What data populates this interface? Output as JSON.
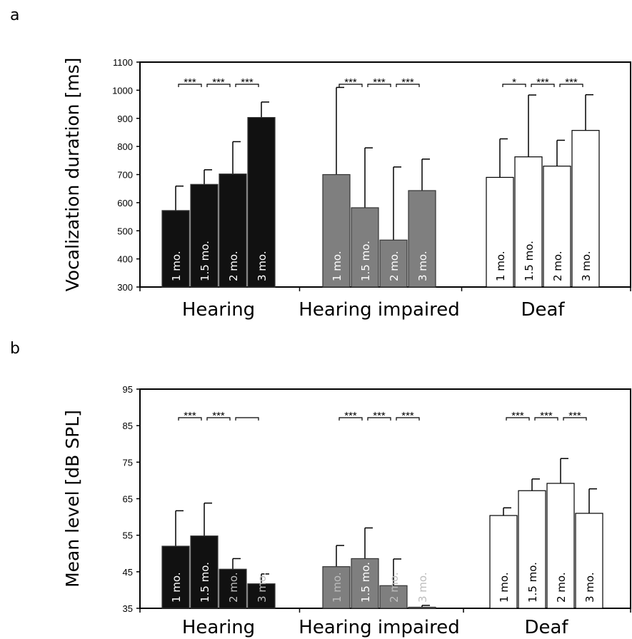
{
  "panel_labels": [
    "a",
    "b"
  ],
  "colors": {
    "Hearing": "#111111",
    "Hearing impaired": "#7f7f7f",
    "Deaf": "#ffffff"
  },
  "chart_data": [
    {
      "type": "bar",
      "panel": "a",
      "ylabel": "Vocalization duration [ms]",
      "ylim": [
        300,
        1100
      ],
      "yticks": [
        300,
        400,
        500,
        600,
        700,
        800,
        900,
        1000,
        1100
      ],
      "groups": [
        "Hearing",
        "Hearing impaired",
        "Deaf"
      ],
      "bar_labels": [
        "1 mo.",
        "1.5 mo.",
        "2 mo.",
        "3 mo."
      ],
      "series": [
        {
          "group": "Hearing",
          "values": [
            572,
            665,
            702,
            903
          ],
          "errors": [
            87,
            52,
            115,
            55
          ]
        },
        {
          "group": "Hearing impaired",
          "values": [
            700,
            582,
            467,
            643
          ],
          "errors": [
            310,
            213,
            260,
            112
          ]
        },
        {
          "group": "Deaf",
          "values": [
            690,
            763,
            730,
            857
          ],
          "errors": [
            137,
            220,
            92,
            127
          ]
        }
      ],
      "significance": [
        {
          "group": "Hearing",
          "labels": [
            "***",
            "***",
            "***"
          ]
        },
        {
          "group": "Hearing impaired",
          "labels": [
            "***",
            "***",
            "***"
          ]
        },
        {
          "group": "Deaf",
          "labels": [
            "*",
            "***",
            "***"
          ]
        }
      ]
    },
    {
      "type": "bar",
      "panel": "b",
      "ylabel": "Mean level [dB SPL]",
      "ylim": [
        35,
        95
      ],
      "yticks": [
        35,
        45,
        55,
        65,
        75,
        85,
        95
      ],
      "groups": [
        "Hearing",
        "Hearing impaired",
        "Deaf"
      ],
      "bar_labels": [
        "1 mo.",
        "1.5 mo.",
        "2 mo.",
        "3 mo."
      ],
      "series": [
        {
          "group": "Hearing",
          "values": [
            52.0,
            54.8,
            45.7,
            41.7
          ],
          "errors": [
            9.7,
            9.0,
            2.9,
            2.7
          ]
        },
        {
          "group": "Hearing impaired",
          "values": [
            46.4,
            48.6,
            41.2,
            35.3
          ],
          "errors": [
            5.8,
            8.4,
            7.3,
            0.5
          ]
        },
        {
          "group": "Deaf",
          "values": [
            60.4,
            67.2,
            69.2,
            61.0
          ],
          "errors": [
            2.1,
            3.2,
            6.8,
            6.7
          ]
        }
      ],
      "significance": [
        {
          "group": "Hearing",
          "labels": [
            "***",
            "***",
            ""
          ]
        },
        {
          "group": "Hearing impaired",
          "labels": [
            "***",
            "***",
            "***"
          ]
        },
        {
          "group": "Deaf",
          "labels": [
            "***",
            "***",
            "***"
          ]
        }
      ]
    }
  ]
}
